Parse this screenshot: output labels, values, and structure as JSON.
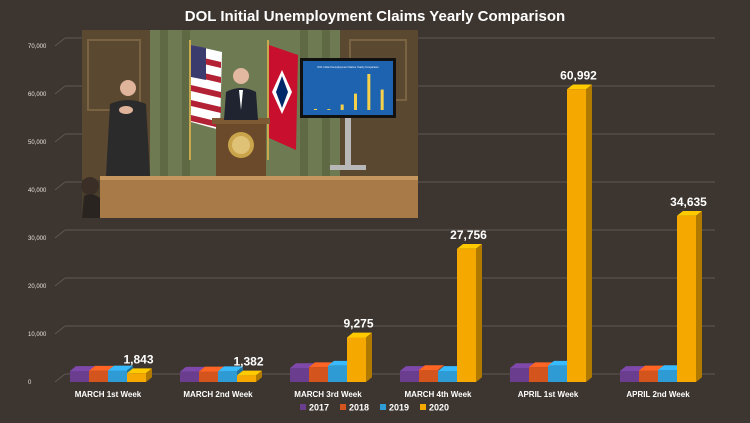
{
  "chart_data": {
    "type": "bar",
    "title": "DOL Initial Unemployment Claims Yearly Comparison",
    "categories": [
      "MARCH 1st Week",
      "MARCH 2nd Week",
      "MARCH 3rd Week",
      "MARCH 4th Week",
      "APRIL 1st Week",
      "APRIL 2nd Week"
    ],
    "series": [
      {
        "name": "2017",
        "values": [
          2300,
          2150,
          2900,
          2300,
          2900,
          2300
        ]
      },
      {
        "name": "2018",
        "values": [
          2350,
          2200,
          3100,
          2500,
          3100,
          2400
        ]
      },
      {
        "name": "2019",
        "values": [
          2400,
          2250,
          3400,
          2300,
          3400,
          2500
        ]
      },
      {
        "name": "2020",
        "values": [
          1843,
          1382,
          9275,
          27756,
          60992,
          34635
        ]
      }
    ],
    "data_labels": [
      "1,843",
      "1,382",
      "9,275",
      "27,756",
      "60,992",
      "34,635"
    ],
    "ylim": [
      0,
      70000
    ],
    "yticks": [
      "0",
      "10,000",
      "20,000",
      "30,000",
      "40,000",
      "50,000",
      "60,000",
      "70,000"
    ],
    "legend_position": "bottom",
    "colors": {
      "2017": "#6a3d8f",
      "2018": "#d4541e",
      "2019": "#2f9bd4",
      "2020": "#f5a800",
      "background": "#3d3630",
      "grid": "#6a625a"
    }
  },
  "video_inset": {
    "screen_title": "DOL Initial Unemployment Claims Yearly Comparison"
  }
}
